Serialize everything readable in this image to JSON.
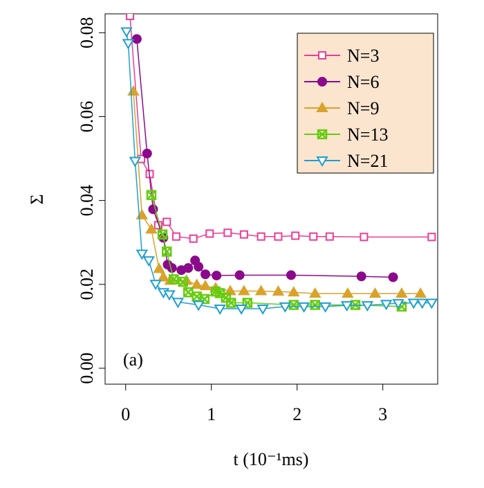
{
  "chart_data": {
    "type": "line",
    "xlabel": "t (10⁻¹ms)",
    "ylabel": "Σ",
    "annotation": "(a)",
    "xlim": [
      -0.24,
      3.64
    ],
    "ylim": [
      -0.0038,
      0.0845
    ],
    "xticks": [
      0,
      1,
      2,
      3
    ],
    "yticks": [
      {
        "value": 0,
        "label": "0.00"
      },
      {
        "value": 0.02,
        "label": "0.02"
      },
      {
        "value": 0.04,
        "label": "0.04"
      },
      {
        "value": 0.06,
        "label": "0.06"
      },
      {
        "value": 0.08,
        "label": "0.08"
      }
    ],
    "legend_position": "top-right",
    "legend_fill": "#fbe5cf",
    "series": [
      {
        "name": "N=3",
        "color": "#ec3c96",
        "marker": "open-square",
        "x": [
          0.05,
          0.18,
          0.28,
          0.38,
          0.48,
          0.59,
          0.79,
          0.98,
          1.19,
          1.38,
          1.58,
          1.78,
          1.98,
          2.19,
          2.38,
          2.78,
          3.57
        ],
        "values": [
          0.084,
          0.0499,
          0.0463,
          0.0341,
          0.0349,
          0.0314,
          0.0309,
          0.0321,
          0.0323,
          0.0319,
          0.0314,
          0.0314,
          0.0316,
          0.0314,
          0.0314,
          0.0313,
          0.0313
        ]
      },
      {
        "name": "N=6",
        "color": "#8b0a8b",
        "marker": "filled-circle",
        "x": [
          0.13,
          0.25,
          0.32,
          0.44,
          0.49,
          0.54,
          0.65,
          0.73,
          0.81,
          0.85,
          0.93,
          1.06,
          1.33,
          1.93,
          2.75,
          3.12
        ],
        "values": [
          0.0785,
          0.0512,
          0.0379,
          0.0311,
          0.0247,
          0.0239,
          0.0234,
          0.0239,
          0.0257,
          0.0242,
          0.0224,
          0.0221,
          0.0222,
          0.0222,
          0.0219,
          0.0217
        ]
      },
      {
        "name": "N=9",
        "color": "#d9a22a",
        "marker": "filled-triangle",
        "x": [
          0.09,
          0.19,
          0.3,
          0.39,
          0.44,
          0.52,
          0.71,
          0.83,
          0.93,
          1.05,
          1.22,
          1.38,
          1.58,
          1.78,
          1.96,
          2.21,
          2.59,
          2.91,
          3.22,
          3.44
        ],
        "values": [
          0.066,
          0.0365,
          0.0331,
          0.0237,
          0.0217,
          0.0209,
          0.0209,
          0.0199,
          0.0196,
          0.0191,
          0.0184,
          0.0184,
          0.0184,
          0.0183,
          0.0181,
          0.0178,
          0.0178,
          0.0178,
          0.0178,
          0.0178
        ]
      },
      {
        "name": "N=13",
        "color": "#66cc11",
        "marker": "boxed-x",
        "x": [
          0.3,
          0.43,
          0.48,
          0.56,
          0.67,
          0.73,
          0.83,
          0.92,
          1.05,
          1.1,
          1.17,
          1.23,
          1.42,
          1.96,
          2.21,
          2.68,
          3.22
        ],
        "values": [
          0.0413,
          0.0319,
          0.0278,
          0.0212,
          0.0206,
          0.0181,
          0.0171,
          0.0165,
          0.0183,
          0.0179,
          0.0168,
          0.0156,
          0.0156,
          0.0151,
          0.0151,
          0.0151,
          0.0147
        ]
      },
      {
        "name": "N=21",
        "color": "#1e9fd0",
        "marker": "open-down-triangle",
        "x": [
          0.01,
          0.03,
          0.11,
          0.19,
          0.27,
          0.35,
          0.44,
          0.51,
          0.61,
          0.85,
          1.1,
          1.35,
          1.6,
          1.86,
          2.08,
          2.33,
          2.58,
          2.82,
          3.04,
          3.18,
          3.36,
          3.46,
          3.57
        ],
        "values": [
          0.0803,
          0.0775,
          0.0494,
          0.0273,
          0.0257,
          0.0201,
          0.0181,
          0.0176,
          0.0158,
          0.0151,
          0.0142,
          0.0142,
          0.0142,
          0.0147,
          0.0147,
          0.0147,
          0.015,
          0.015,
          0.0153,
          0.0155,
          0.0156,
          0.0156,
          0.0156
        ]
      }
    ]
  }
}
